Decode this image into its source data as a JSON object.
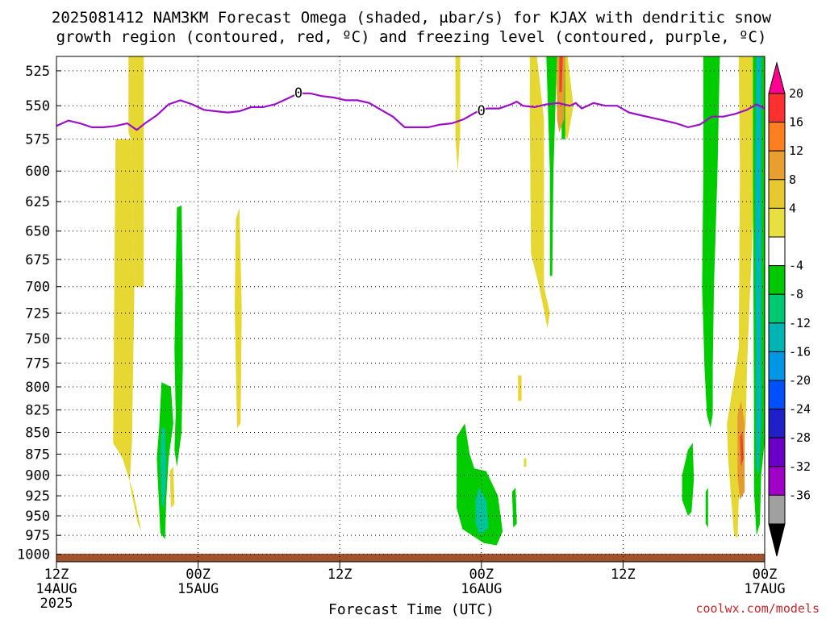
{
  "title": {
    "line1": "2025081412 NAM3KM Forecast Omega (shaded, μbar/s) for KJAX with dendritic snow",
    "line2": "growth region (contoured, red, ºC) and freezing level (contoured, purple, ºC)"
  },
  "credit": "coolwx.com/models",
  "colors": {
    "green": "#00cc00",
    "teal": "#00c49a",
    "cyan": "#00b4c8",
    "yellow": "#e6d733",
    "orange": "#e69b2e",
    "red": "#e8452b",
    "purple_line": "#9b0fc8",
    "terrain": "#a0522d"
  },
  "chart_data": {
    "type": "heatmap",
    "xlabel": "Forecast Time (UTC)",
    "x_ticks": [
      {
        "hour": 0,
        "label": "12Z",
        "sub": "14AUG",
        "sub2": "2025"
      },
      {
        "hour": 12,
        "label": "00Z",
        "sub": "15AUG",
        "sub2": ""
      },
      {
        "hour": 24,
        "label": "12Z",
        "sub": "",
        "sub2": ""
      },
      {
        "hour": 36,
        "label": "00Z",
        "sub": "16AUG",
        "sub2": ""
      },
      {
        "hour": 48,
        "label": "12Z",
        "sub": "",
        "sub2": ""
      },
      {
        "hour": 60,
        "label": "00Z",
        "sub": "17AUG",
        "sub2": ""
      }
    ],
    "xlim": [
      0,
      60
    ],
    "y_ticks": [
      525,
      550,
      575,
      600,
      625,
      650,
      675,
      700,
      725,
      750,
      775,
      800,
      825,
      850,
      875,
      900,
      925,
      950,
      975,
      1000
    ],
    "ylim": [
      515,
      1010
    ],
    "y_scale": "log-pressure",
    "grid": true,
    "colorbar": {
      "labels": [
        "20",
        "16",
        "12",
        "8",
        "4",
        "-4",
        "-8",
        "-12",
        "-16",
        "-20",
        "-24",
        "-28",
        "-32",
        "-36"
      ],
      "colors": [
        "#ff0090",
        "#ff3030",
        "#ff7f20",
        "#e89f30",
        "#e8c830",
        "#e8e040",
        "#ffffff",
        "#00c800",
        "#00c870",
        "#00b4b4",
        "#0096e6",
        "#0050ff",
        "#2020c8",
        "#6a00c8",
        "#a000c8",
        "#a0a0a0",
        "#000000"
      ]
    },
    "freezing_level": {
      "label": "0",
      "points": [
        [
          0,
          565
        ],
        [
          1,
          561
        ],
        [
          2,
          563
        ],
        [
          3,
          566
        ],
        [
          4,
          566
        ],
        [
          5,
          565
        ],
        [
          6,
          563
        ],
        [
          6.8,
          568
        ],
        [
          7.5,
          563
        ],
        [
          8.5,
          557
        ],
        [
          9.5,
          549
        ],
        [
          10.5,
          546
        ],
        [
          11.5,
          549
        ],
        [
          12.5,
          553
        ],
        [
          13.5,
          554
        ],
        [
          14.5,
          555
        ],
        [
          15.5,
          554
        ],
        [
          16.5,
          551
        ],
        [
          17.5,
          551
        ],
        [
          18.5,
          549
        ],
        [
          19.5,
          545
        ],
        [
          20.5,
          541
        ],
        [
          21.5,
          541
        ],
        [
          22.5,
          543
        ],
        [
          23.5,
          544
        ],
        [
          24.5,
          546
        ],
        [
          25.5,
          546
        ],
        [
          26.5,
          548
        ],
        [
          27.5,
          553
        ],
        [
          28.5,
          558
        ],
        [
          29.5,
          566
        ],
        [
          30.5,
          566
        ],
        [
          31.5,
          566
        ],
        [
          32.5,
          564
        ],
        [
          33.5,
          563
        ],
        [
          34.5,
          560
        ],
        [
          35.5,
          555
        ],
        [
          36.5,
          552
        ],
        [
          37.5,
          552
        ],
        [
          38.5,
          549
        ],
        [
          39,
          547
        ],
        [
          39.5,
          550
        ],
        [
          40.5,
          551
        ],
        [
          41.5,
          549
        ],
        [
          42.5,
          548
        ],
        [
          43.5,
          550
        ],
        [
          44,
          548
        ],
        [
          44.5,
          552
        ],
        [
          45.5,
          548
        ],
        [
          46.5,
          550
        ],
        [
          47.5,
          550
        ],
        [
          48.5,
          555
        ],
        [
          49.5,
          557
        ],
        [
          50.5,
          559
        ],
        [
          51.5,
          561
        ],
        [
          52.5,
          563
        ],
        [
          53.5,
          566
        ],
        [
          54.5,
          564
        ],
        [
          55.5,
          558
        ],
        [
          56.5,
          558
        ],
        [
          57.5,
          556
        ],
        [
          58.5,
          553
        ],
        [
          59.3,
          549
        ],
        [
          60,
          552
        ]
      ]
    },
    "terrain_floor_hpa": 1010,
    "omega_regions": [
      {
        "name": "yellow-column-a",
        "value": 4,
        "color": "yellow",
        "points": [
          [
            4.8,
            862
          ],
          [
            5.0,
            575
          ],
          [
            6.3,
            575
          ],
          [
            6.6,
            700
          ],
          [
            6.4,
            860
          ],
          [
            6.2,
            910
          ],
          [
            6.9,
            960
          ],
          [
            7.2,
            970
          ],
          [
            6.5,
            920
          ],
          [
            5.6,
            880
          ]
        ]
      },
      {
        "name": "yellow-column-b",
        "value": 4,
        "color": "yellow",
        "points": [
          [
            6.1,
            515
          ],
          [
            7.4,
            515
          ],
          [
            7.4,
            700
          ],
          [
            6.6,
            700
          ],
          [
            6.3,
            575
          ],
          [
            6.1,
            570
          ]
        ]
      },
      {
        "name": "yellow-streak-top",
        "value": 4,
        "color": "yellow",
        "points": [
          [
            6.2,
            515
          ],
          [
            6.6,
            515
          ],
          [
            6.5,
            545
          ],
          [
            6.2,
            540
          ]
        ]
      },
      {
        "name": "yellow-small-15aug",
        "value": 4,
        "color": "yellow",
        "points": [
          [
            9.6,
            895
          ],
          [
            9.9,
            890
          ],
          [
            10.0,
            935
          ],
          [
            9.7,
            940
          ]
        ]
      },
      {
        "name": "yellow-streak-15aug",
        "value": 4,
        "color": "yellow",
        "points": [
          [
            15.2,
            640
          ],
          [
            15.5,
            630
          ],
          [
            15.7,
            720
          ],
          [
            15.6,
            840
          ],
          [
            15.3,
            845
          ],
          [
            15.1,
            720
          ]
        ]
      },
      {
        "name": "yellow-narrow-top-16aug",
        "value": 4,
        "color": "yellow",
        "points": [
          [
            33.8,
            515
          ],
          [
            34.2,
            515
          ],
          [
            34.2,
            570
          ],
          [
            34.0,
            600
          ],
          [
            33.8,
            575
          ]
        ]
      },
      {
        "name": "yellow-small-16aug-b",
        "value": 4,
        "color": "yellow",
        "points": [
          [
            39.1,
            788
          ],
          [
            39.4,
            788
          ],
          [
            39.4,
            815
          ],
          [
            39.1,
            815
          ]
        ]
      },
      {
        "name": "yellow-small-16aug-c",
        "value": 4,
        "color": "yellow",
        "points": [
          [
            39.6,
            880
          ],
          [
            39.8,
            880
          ],
          [
            39.8,
            890
          ],
          [
            39.6,
            890
          ]
        ]
      },
      {
        "name": "yellow-streak-16aug",
        "value": 4,
        "color": "yellow",
        "points": [
          [
            40.1,
            515
          ],
          [
            40.7,
            515
          ],
          [
            41.3,
            560
          ],
          [
            41.3,
            700
          ],
          [
            41.8,
            725
          ],
          [
            41.6,
            740
          ],
          [
            40.9,
            700
          ],
          [
            40.2,
            670
          ],
          [
            40.1,
            560
          ]
        ]
      },
      {
        "name": "yellow-top-16aug-red",
        "value": 4,
        "color": "yellow",
        "points": [
          [
            42.2,
            515
          ],
          [
            43.3,
            515
          ],
          [
            43.8,
            550
          ],
          [
            43.3,
            575
          ],
          [
            42.9,
            570
          ],
          [
            42.5,
            560
          ]
        ]
      },
      {
        "name": "yellow-columns-17aug",
        "value": 4,
        "color": "yellow",
        "points": [
          [
            57.8,
            515
          ],
          [
            59.3,
            515
          ],
          [
            59.1,
            620
          ],
          [
            58.5,
            780
          ],
          [
            58.4,
            840
          ],
          [
            57.8,
            930
          ],
          [
            57.7,
            978
          ],
          [
            57.4,
            975
          ],
          [
            56.9,
            880
          ],
          [
            56.8,
            840
          ],
          [
            57.3,
            800
          ],
          [
            57.8,
            760
          ],
          [
            57.9,
            600
          ]
        ]
      },
      {
        "name": "green-column-15aug",
        "value": -4,
        "color": "green",
        "points": [
          [
            10.2,
            630
          ],
          [
            10.6,
            628
          ],
          [
            10.7,
            705
          ],
          [
            10.7,
            780
          ],
          [
            10.6,
            850
          ],
          [
            10.2,
            890
          ],
          [
            10.0,
            870
          ],
          [
            10.1,
            830
          ],
          [
            10.0,
            760
          ]
        ]
      },
      {
        "name": "green-cell-15aug",
        "value": -4,
        "color": "green",
        "points": [
          [
            8.9,
            795
          ],
          [
            9.7,
            800
          ],
          [
            9.9,
            840
          ],
          [
            9.5,
            880
          ],
          [
            9.3,
            930
          ],
          [
            9.2,
            980
          ],
          [
            8.8,
            972
          ],
          [
            8.5,
            880
          ],
          [
            8.7,
            845
          ]
        ]
      },
      {
        "name": "green-cell-16aug",
        "value": -4,
        "color": "green",
        "points": [
          [
            33.9,
            855
          ],
          [
            34.6,
            840
          ],
          [
            35.0,
            875
          ],
          [
            35.4,
            892
          ],
          [
            36.4,
            895
          ],
          [
            37.4,
            925
          ],
          [
            37.8,
            970
          ],
          [
            37.3,
            988
          ],
          [
            36.2,
            985
          ],
          [
            34.4,
            967
          ],
          [
            33.9,
            940
          ]
        ]
      },
      {
        "name": "green-small-16aug",
        "value": -4,
        "color": "green",
        "points": [
          [
            38.6,
            920
          ],
          [
            38.9,
            915
          ],
          [
            39.0,
            960
          ],
          [
            38.7,
            965
          ]
        ]
      },
      {
        "name": "green-column-16aug",
        "value": -4,
        "color": "green",
        "points": [
          [
            41.5,
            515
          ],
          [
            42.4,
            515
          ],
          [
            42.1,
            600
          ],
          [
            42.0,
            690
          ],
          [
            41.8,
            690
          ],
          [
            41.8,
            600
          ]
        ]
      },
      {
        "name": "green-column-16aug-b",
        "value": -4,
        "color": "green",
        "points": [
          [
            42.8,
            515
          ],
          [
            43.1,
            515
          ],
          [
            43.1,
            575
          ],
          [
            42.8,
            575
          ]
        ]
      },
      {
        "name": "green-column-17aug",
        "value": -4,
        "color": "green",
        "points": [
          [
            54.8,
            515
          ],
          [
            56.2,
            515
          ],
          [
            56.0,
            600
          ],
          [
            55.7,
            700
          ],
          [
            55.6,
            780
          ],
          [
            55.6,
            830
          ],
          [
            55.4,
            845
          ],
          [
            55.1,
            830
          ],
          [
            54.9,
            780
          ],
          [
            54.7,
            700
          ],
          [
            54.8,
            600
          ]
        ]
      },
      {
        "name": "green-cell-17aug",
        "value": -4,
        "color": "green",
        "points": [
          [
            53.0,
            900
          ],
          [
            53.5,
            870
          ],
          [
            53.9,
            862
          ],
          [
            54.0,
            905
          ],
          [
            53.8,
            945
          ],
          [
            53.5,
            950
          ],
          [
            53.0,
            930
          ]
        ]
      },
      {
        "name": "green-small-17aug",
        "value": -4,
        "color": "green",
        "points": [
          [
            55.0,
            920
          ],
          [
            55.2,
            915
          ],
          [
            55.2,
            965
          ],
          [
            55.0,
            960
          ]
        ]
      },
      {
        "name": "green-column-17aug-b",
        "value": -4,
        "color": "green",
        "points": [
          [
            59.0,
            515
          ],
          [
            60.0,
            515
          ],
          [
            60.0,
            860
          ],
          [
            59.7,
            900
          ],
          [
            59.6,
            960
          ],
          [
            59.3,
            975
          ],
          [
            59.1,
            920
          ],
          [
            59.1,
            840
          ],
          [
            59.0,
            600
          ]
        ]
      },
      {
        "name": "teal-cell-15aug",
        "value": -8,
        "color": "teal",
        "points": [
          [
            8.9,
            845
          ],
          [
            9.2,
            845
          ],
          [
            9.3,
            900
          ],
          [
            9.1,
            940
          ],
          [
            8.9,
            935
          ],
          [
            8.8,
            880
          ]
        ]
      },
      {
        "name": "teal-cell-16aug",
        "value": -8,
        "color": "teal",
        "points": [
          [
            35.8,
            915
          ],
          [
            36.4,
            930
          ],
          [
            36.6,
            965
          ],
          [
            35.9,
            975
          ],
          [
            35.5,
            960
          ],
          [
            35.5,
            930
          ]
        ]
      },
      {
        "name": "teal-column-17aug",
        "value": -12,
        "color": "cyan",
        "points": [
          [
            59.3,
            515
          ],
          [
            59.7,
            515
          ],
          [
            59.7,
            840
          ],
          [
            59.5,
            900
          ],
          [
            59.3,
            890
          ],
          [
            59.2,
            600
          ]
        ]
      },
      {
        "name": "orange-cell-17aug",
        "value": 8,
        "color": "orange",
        "points": [
          [
            57.7,
            830
          ],
          [
            58.0,
            815
          ],
          [
            58.3,
            840
          ],
          [
            58.3,
            920
          ],
          [
            57.9,
            930
          ],
          [
            57.7,
            900
          ]
        ]
      },
      {
        "name": "orange-top-16aug",
        "value": 8,
        "color": "orange",
        "points": [
          [
            42.4,
            515
          ],
          [
            43.1,
            515
          ],
          [
            43.0,
            560
          ],
          [
            42.6,
            570
          ],
          [
            42.4,
            560
          ]
        ]
      },
      {
        "name": "red-top-16aug",
        "value": 12,
        "color": "red",
        "points": [
          [
            42.6,
            515
          ],
          [
            42.9,
            515
          ],
          [
            42.8,
            540
          ],
          [
            42.6,
            540
          ]
        ]
      },
      {
        "name": "red-cell-17aug",
        "value": 12,
        "color": "red",
        "points": [
          [
            57.9,
            855
          ],
          [
            58.1,
            850
          ],
          [
            58.2,
            880
          ],
          [
            58.0,
            890
          ]
        ]
      }
    ]
  }
}
